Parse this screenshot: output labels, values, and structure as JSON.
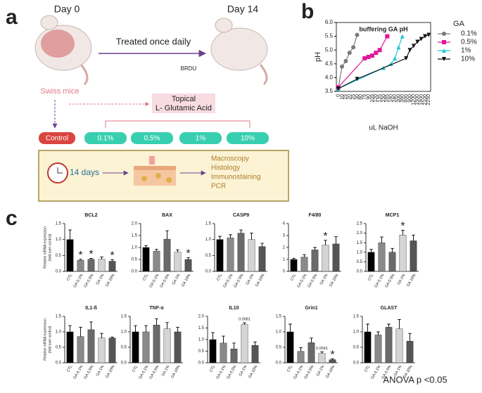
{
  "panel_a": {
    "label": "a",
    "day_start": "Day 0",
    "day_end": "Day 14",
    "treatment": "Treated once daily",
    "marker": "BRDU",
    "model": "Swiss mice",
    "application": [
      "Topical",
      "L- Glutamic Acid"
    ],
    "groups": [
      "Control",
      "0.1%",
      "0.5%",
      "1%",
      "10%"
    ],
    "duration": "14 days",
    "analyses": [
      "Macroscopy",
      "Histology",
      "Immunostaining",
      "PCR"
    ]
  },
  "panel_b_label": "b",
  "panel_c_label": "c",
  "footer": "ANOVA p <0.05",
  "chart_data": [
    {
      "type": "line",
      "title": "buffering GA pH",
      "xlabel": "uL NaOH",
      "ylabel": "pH",
      "legend_title": "GA",
      "legend": "right",
      "categories": [
        "0",
        "10",
        "15",
        "20",
        "25",
        "30",
        "60",
        "75",
        "90",
        "105",
        "120",
        "135",
        "150",
        "165",
        "180",
        "240",
        "300",
        "360",
        "600",
        "900",
        "1200",
        "1500",
        "1800",
        "2100",
        "2250"
      ],
      "ylim": [
        3.5,
        6
      ],
      "yticks": [
        {
          "value": 3.5,
          "label": "3.5"
        },
        {
          "value": 4,
          "label": "4.0"
        },
        {
          "value": 4.5,
          "label": "4.5"
        },
        {
          "value": 5,
          "label": "5.0"
        },
        {
          "value": 5.5,
          "label": "5.5"
        },
        {
          "value": 6,
          "label": "6.0"
        }
      ],
      "series": [
        {
          "name": "0.1%",
          "color": "#7a7a7a",
          "marker": "circle",
          "x": [
            "0",
            "10",
            "15",
            "20",
            "25",
            "30"
          ],
          "values": [
            3.6,
            4.4,
            4.6,
            4.9,
            5.1,
            5.55
          ]
        },
        {
          "name": "0.5%",
          "color": "#e0179a",
          "marker": "square",
          "x": [
            "0",
            "75",
            "90",
            "105",
            "120",
            "135",
            "165"
          ],
          "values": [
            3.65,
            4.7,
            4.75,
            4.8,
            4.9,
            5.0,
            5.5
          ]
        },
        {
          "name": "1%",
          "color": "#1fc6d6",
          "marker": "triangle",
          "x": [
            "0",
            "150",
            "180",
            "240",
            "300",
            "360"
          ],
          "values": [
            3.6,
            4.35,
            4.5,
            4.7,
            5.1,
            5.5
          ]
        },
        {
          "name": "10%",
          "color": "#111111",
          "marker": "triangle-down",
          "x": [
            "0",
            "30",
            "600",
            "900",
            "1200",
            "1500",
            "1800",
            "2100",
            "2250"
          ],
          "values": [
            3.6,
            3.95,
            4.7,
            5.0,
            5.15,
            5.3,
            5.4,
            5.5,
            5.55
          ]
        }
      ]
    },
    {
      "type": "bar",
      "title": "BCL2",
      "ylabel": [
        "Relative mRNA expression",
        "(fold over control)"
      ],
      "categories": [
        "CTL",
        "GA 0.1%",
        "GA 0.5%",
        "GA 1%",
        "GA 10%"
      ],
      "values": [
        1.0,
        0.35,
        0.38,
        0.38,
        0.32
      ],
      "errors": [
        0.3,
        0.03,
        0.03,
        0.07,
        0.05
      ],
      "colors": [
        "#000000",
        "#8a8a8a",
        "#6a6a6a",
        "#d4d4d4",
        "#555555"
      ],
      "ylim": [
        0,
        1.5
      ],
      "yticks": [
        {
          "value": 0,
          "label": "0.0"
        },
        {
          "value": 0.5,
          "label": "0.5"
        },
        {
          "value": 1,
          "label": "1.0"
        },
        {
          "value": 1.5,
          "label": "1.5"
        }
      ],
      "annotations": [
        {
          "category": "GA 0.1%",
          "text": "*"
        },
        {
          "category": "GA 0.5%",
          "text": "*"
        },
        {
          "category": "GA 10%",
          "text": "*"
        }
      ]
    },
    {
      "type": "bar",
      "title": "BAX",
      "categories": [
        "CTL",
        "GA 0.1%",
        "GA 0.5%",
        "GA 1%",
        "GA 10%"
      ],
      "values": [
        1.0,
        0.85,
        1.35,
        0.8,
        0.5
      ],
      "errors": [
        0.08,
        0.07,
        0.35,
        0.1,
        0.08
      ],
      "colors": [
        "#000000",
        "#8a8a8a",
        "#6a6a6a",
        "#d4d4d4",
        "#555555"
      ],
      "ylim": [
        0,
        2
      ],
      "yticks": [
        {
          "value": 0,
          "label": "0.0"
        },
        {
          "value": 0.5,
          "label": "0.5"
        },
        {
          "value": 1,
          "label": "1.0"
        },
        {
          "value": 1.5,
          "label": "1.5"
        },
        {
          "value": 2,
          "label": "2.0"
        }
      ],
      "annotations": [
        {
          "category": "GA 10%",
          "text": "*"
        }
      ]
    },
    {
      "type": "bar",
      "title": "CASP9",
      "categories": [
        "CTL",
        "GA 0.1%",
        "GA 0.5%",
        "GA 1%",
        "GA 10%"
      ],
      "values": [
        1.0,
        1.05,
        1.2,
        1.0,
        0.78
      ],
      "errors": [
        0.1,
        0.1,
        0.1,
        0.2,
        0.1
      ],
      "colors": [
        "#000000",
        "#8a8a8a",
        "#6a6a6a",
        "#d4d4d4",
        "#555555"
      ],
      "ylim": [
        0,
        1.5
      ],
      "yticks": [
        {
          "value": 0,
          "label": "0.0"
        },
        {
          "value": 0.5,
          "label": "0.5"
        },
        {
          "value": 1,
          "label": "1.0"
        },
        {
          "value": 1.5,
          "label": "1.5"
        }
      ]
    },
    {
      "type": "bar",
      "title": "F4/80",
      "categories": [
        "CTL",
        "GA 0.1%",
        "GA 0.5%",
        "GA 1%",
        "GA 10%"
      ],
      "values": [
        1.0,
        1.2,
        1.8,
        2.2,
        2.3
      ],
      "errors": [
        0.1,
        0.2,
        0.2,
        0.4,
        0.6
      ],
      "colors": [
        "#000000",
        "#8a8a8a",
        "#6a6a6a",
        "#d4d4d4",
        "#555555"
      ],
      "ylim": [
        0,
        4
      ],
      "yticks": [
        0,
        1,
        2,
        3,
        4
      ],
      "annotations": [
        {
          "category": "GA 1%",
          "text": "*"
        }
      ]
    },
    {
      "type": "bar",
      "title": "MCP1",
      "categories": [
        "CTL",
        "GA 0.1%",
        "GA 0.5%",
        "GA 1%",
        "GA 10%"
      ],
      "values": [
        1.0,
        1.5,
        1.0,
        1.9,
        1.6
      ],
      "errors": [
        0.15,
        0.3,
        0.2,
        0.25,
        0.3
      ],
      "colors": [
        "#000000",
        "#8a8a8a",
        "#6a6a6a",
        "#d4d4d4",
        "#555555"
      ],
      "ylim": [
        0,
        2.5
      ],
      "yticks": [
        {
          "value": 0,
          "label": "0.0"
        },
        {
          "value": 0.5,
          "label": "0.5"
        },
        {
          "value": 1,
          "label": "1.0"
        },
        {
          "value": 1.5,
          "label": "1.5"
        },
        {
          "value": 2,
          "label": "2.0"
        },
        {
          "value": 2.5,
          "label": "2.5"
        }
      ],
      "annotations": [
        {
          "category": "GA 1%",
          "text": "*"
        }
      ]
    },
    {
      "type": "bar",
      "title": "IL1-ß",
      "ylabel": [
        "Relative mRNA expression",
        "(fold over control)"
      ],
      "categories": [
        "CTL",
        "GA 0.1%",
        "GA 0.5%",
        "GA 1%",
        "GA 10%"
      ],
      "values": [
        1.0,
        0.85,
        1.07,
        0.8,
        0.8
      ],
      "errors": [
        0.2,
        0.3,
        0.25,
        0.15,
        0.03
      ],
      "colors": [
        "#000000",
        "#8a8a8a",
        "#6a6a6a",
        "#d4d4d4",
        "#555555"
      ],
      "ylim": [
        0,
        1.5
      ],
      "yticks": [
        {
          "value": 0,
          "label": "0.0"
        },
        {
          "value": 0.5,
          "label": "0.5"
        },
        {
          "value": 1,
          "label": "1.0"
        },
        {
          "value": 1.5,
          "label": "1.5"
        }
      ]
    },
    {
      "type": "bar",
      "title": "TNF-α",
      "categories": [
        "CTL",
        "GA 0.1%",
        "GA 0.5%",
        "GA 1%",
        "GA 10%"
      ],
      "values": [
        1.0,
        1.0,
        1.22,
        1.1,
        1.0
      ],
      "errors": [
        0.2,
        0.2,
        0.2,
        0.2,
        0.15
      ],
      "colors": [
        "#000000",
        "#8a8a8a",
        "#6a6a6a",
        "#d4d4d4",
        "#555555"
      ],
      "ylim": [
        0,
        1.5
      ],
      "yticks": [
        {
          "value": 0,
          "label": "0.0"
        },
        {
          "value": 0.5,
          "label": "0.5"
        },
        {
          "value": 1,
          "label": "1.0"
        },
        {
          "value": 1.5,
          "label": "1.5"
        }
      ]
    },
    {
      "type": "bar",
      "title": "IL10",
      "categories": [
        "CTL",
        "GA 0.1%",
        "GA 0.5%",
        "GA 1%",
        "GA 10%"
      ],
      "values": [
        1.0,
        0.85,
        0.6,
        1.65,
        0.75
      ],
      "errors": [
        0.3,
        0.3,
        0.25,
        0.07,
        0.15
      ],
      "colors": [
        "#000000",
        "#8a8a8a",
        "#6a6a6a",
        "#d4d4d4",
        "#555555"
      ],
      "ylim": [
        0,
        2
      ],
      "yticks": [
        {
          "value": 0,
          "label": "0.0"
        },
        {
          "value": 0.5,
          "label": "0.5"
        },
        {
          "value": 1,
          "label": "1.0"
        },
        {
          "value": 1.5,
          "label": "1.5"
        },
        {
          "value": 2,
          "label": "2.0"
        }
      ],
      "annotations": [
        {
          "category": "GA 1%",
          "text": "0.0681"
        }
      ]
    },
    {
      "type": "bar",
      "title": "Grin1",
      "categories": [
        "CTL",
        "GA 0.1%",
        "GA 0.5%",
        "GA 1%",
        "GA 10%"
      ],
      "values": [
        1.0,
        0.37,
        0.65,
        0.3,
        0.1
      ],
      "errors": [
        0.25,
        0.12,
        0.15,
        0.05,
        0.03
      ],
      "colors": [
        "#000000",
        "#8a8a8a",
        "#6a6a6a",
        "#d4d4d4",
        "#555555"
      ],
      "ylim": [
        0,
        1.5
      ],
      "yticks": [
        {
          "value": 0,
          "label": "0.0"
        },
        {
          "value": 0.5,
          "label": "0.5"
        },
        {
          "value": 1,
          "label": "1.0"
        },
        {
          "value": 1.5,
          "label": "1.5"
        }
      ],
      "annotations": [
        {
          "category": "GA 1%",
          "text": "0.0541"
        },
        {
          "category": "GA 10%",
          "text": "*"
        }
      ]
    },
    {
      "type": "bar",
      "title": "GLAST",
      "categories": [
        "CTL",
        "GA 0.1%",
        "GA 0.5%",
        "GA 1%",
        "GA 10%"
      ],
      "values": [
        1.0,
        0.9,
        1.15,
        1.1,
        0.7
      ],
      "errors": [
        0.25,
        0.1,
        0.1,
        0.3,
        0.25
      ],
      "colors": [
        "#000000",
        "#8a8a8a",
        "#6a6a6a",
        "#d4d4d4",
        "#555555"
      ],
      "ylim": [
        0,
        1.5
      ],
      "yticks": [
        {
          "value": 0,
          "label": "0.0"
        },
        {
          "value": 0.5,
          "label": "0.5"
        },
        {
          "value": 1,
          "label": "1.0"
        },
        {
          "value": 1.5,
          "label": "1.5"
        }
      ]
    }
  ]
}
